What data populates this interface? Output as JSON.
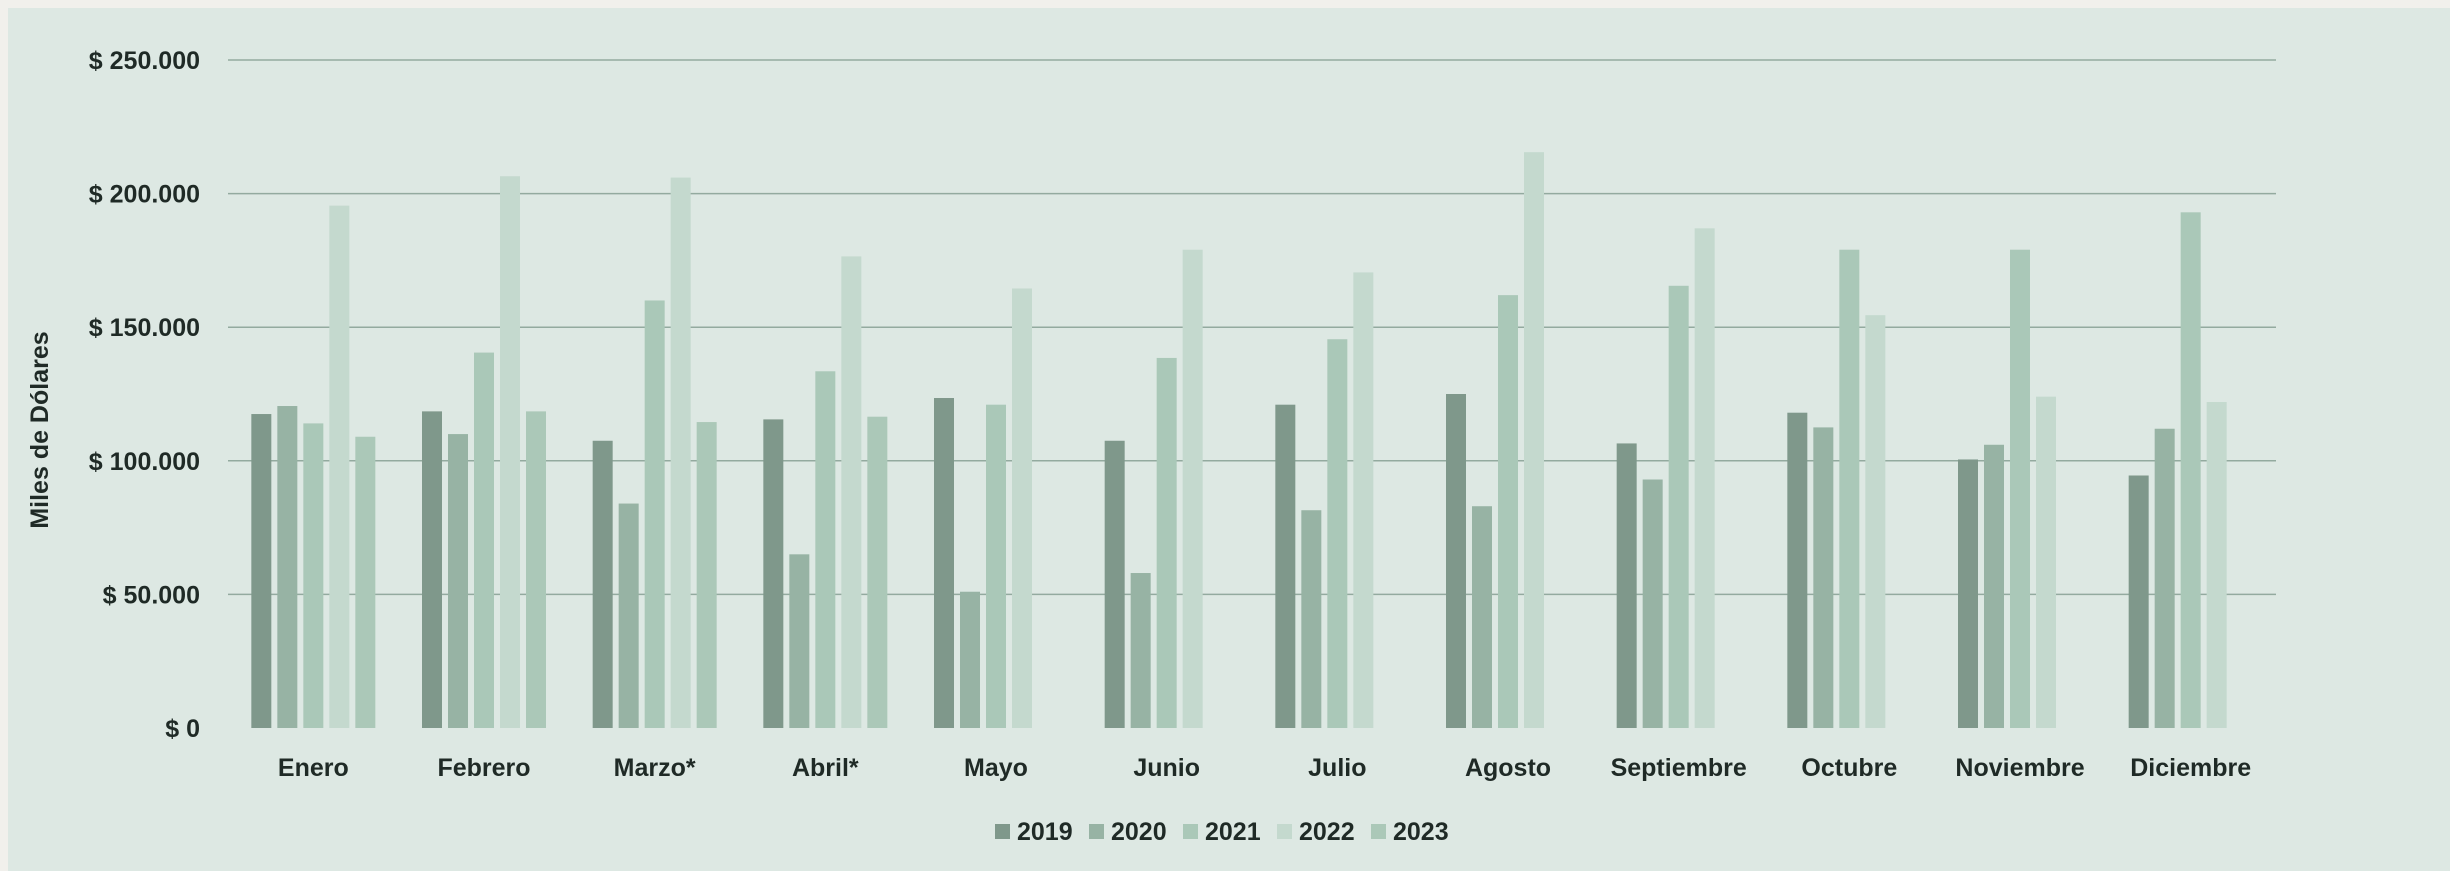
{
  "chart_data": {
    "type": "bar",
    "title": "",
    "xlabel": "",
    "ylabel": "Miles de Dólares",
    "ylim": [
      0,
      250000
    ],
    "yticks": [
      0,
      50000,
      100000,
      150000,
      200000,
      250000
    ],
    "ytick_labels": [
      "$ 0",
      "$ 50.000",
      "$ 100.000",
      "$ 150.000",
      "$ 200.000",
      "$ 250.000"
    ],
    "grid": true,
    "legend_position": "bottom",
    "categories": [
      "Enero",
      "Febrero",
      "Marzo*",
      "Abril*",
      "Mayo",
      "Junio",
      "Julio",
      "Agosto",
      "Septiembre",
      "Octubre",
      "Noviembre",
      "Diciembre"
    ],
    "series": [
      {
        "name": "2019",
        "color": "#7f988b",
        "values": [
          117500,
          118500,
          107500,
          115500,
          123500,
          107500,
          121000,
          125000,
          106500,
          118000,
          100500,
          94500
        ]
      },
      {
        "name": "2020",
        "color": "#97b3a4",
        "values": [
          120500,
          110000,
          84000,
          65000,
          51000,
          58000,
          81500,
          83000,
          93000,
          112500,
          106000,
          112000
        ]
      },
      {
        "name": "2021",
        "color": "#aac8b8",
        "values": [
          114000,
          140500,
          160000,
          133500,
          121000,
          138500,
          145500,
          162000,
          165500,
          179000,
          179000,
          193000
        ]
      },
      {
        "name": "2022",
        "color": "#c4d9ce",
        "values": [
          195500,
          206500,
          206000,
          176500,
          164500,
          179000,
          170500,
          215500,
          187000,
          154500,
          124000,
          122000
        ]
      },
      {
        "name": "2023",
        "color": "#abc8b8",
        "values": [
          109000,
          118500,
          114500,
          116500,
          null,
          null,
          null,
          null,
          null,
          null,
          null,
          null
        ]
      }
    ]
  }
}
